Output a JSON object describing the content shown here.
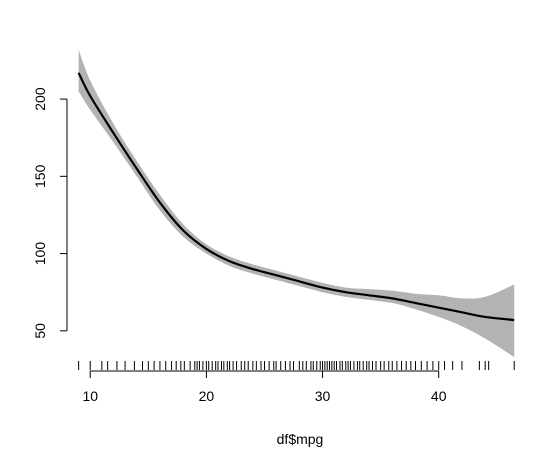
{
  "chart_data": {
    "type": "line",
    "title": "",
    "xlabel": "df$mpg",
    "ylabel": "",
    "xlim": [
      8,
      47.6
    ],
    "ylim": [
      24,
      235
    ],
    "xticks": [
      10,
      20,
      30,
      40
    ],
    "yticks": [
      50,
      100,
      150,
      200
    ],
    "xtick_labels": [
      "10",
      "20",
      "30",
      "40"
    ],
    "ytick_labels": [
      "50",
      "100",
      "150",
      "200"
    ],
    "grid": false,
    "legend": "none",
    "colors": {
      "line": "#000000",
      "band": "#b3b3b3",
      "rug": "#000000"
    },
    "series": [
      {
        "x": [
          9,
          10,
          12,
          14,
          16,
          18,
          20,
          22,
          24,
          26,
          28,
          30,
          32,
          34,
          36,
          38,
          40,
          42,
          44,
          46.5
        ],
        "y": [
          217,
          202,
          178,
          155,
          133,
          115,
          103,
          95,
          90,
          86,
          82,
          78,
          75,
          73,
          71,
          68,
          65,
          62,
          59,
          57
        ],
        "lower": [
          205,
          193,
          172,
          150,
          128,
          111,
          100,
          92,
          87,
          83,
          79,
          75,
          72,
          70,
          68,
          64,
          59,
          53,
          45,
          33
        ],
        "upper": [
          232,
          212,
          184,
          160,
          138,
          119,
          106,
          98,
          93,
          89,
          85,
          81,
          78,
          77,
          76,
          74,
          73,
          71,
          72,
          80
        ]
      }
    ],
    "rug": [
      9,
      10,
      11,
      11.5,
      12.3,
      13,
      13.8,
      14.5,
      15,
      15.5,
      16,
      16.5,
      17,
      17.4,
      17.8,
      18.1,
      18.6,
      19,
      19.2,
      19.4,
      19.7,
      20,
      20.2,
      20.5,
      20.8,
      21,
      21.3,
      21.5,
      21.8,
      22,
      22.3,
      22.6,
      23,
      23.3,
      23.6,
      24,
      24.3,
      24.7,
      25,
      25.4,
      25.8,
      26,
      26.4,
      26.8,
      27.2,
      27.5,
      28,
      28.3,
      28.6,
      29,
      29.2,
      29.5,
      29.8,
      30,
      30.2,
      30.4,
      30.6,
      30.8,
      31,
      31.2,
      31.5,
      31.7,
      32,
      32.2,
      32.4,
      32.7,
      33,
      33.2,
      33.5,
      33.8,
      34,
      34.3,
      34.6,
      35,
      35.3,
      35.7,
      36,
      36.4,
      36.8,
      37.2,
      37.6,
      38,
      38.5,
      39,
      39.5,
      40,
      40.5,
      41.2,
      42,
      43.5,
      44,
      44.3,
      46.5
    ]
  }
}
